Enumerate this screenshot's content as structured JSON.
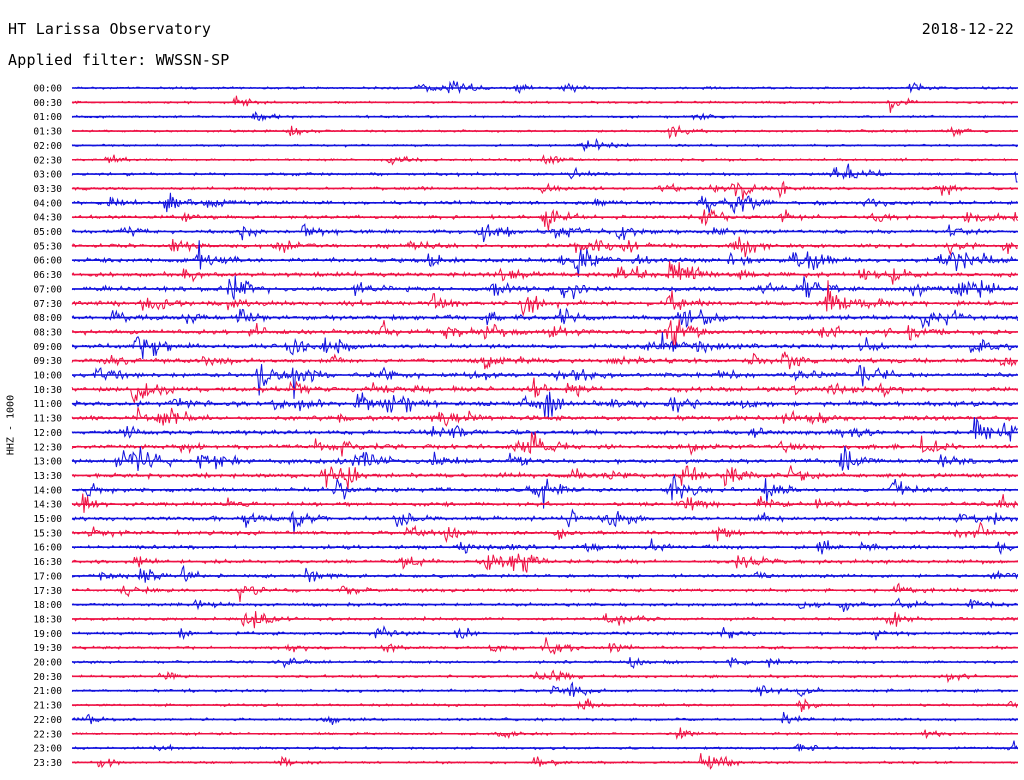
{
  "header": {
    "station": "HT Larissa Observatory",
    "date": "2018-12-22",
    "filter_label": "Applied filter: WWSSN-SP"
  },
  "chart_data": {
    "type": "line",
    "title": "HT Larissa Observatory",
    "subtitle": "Applied filter: WWSSN-SP",
    "ylabel": "HHZ - 1000",
    "xlabel": "",
    "grid": false,
    "colors": [
      "#1111dd",
      "#ee1144"
    ],
    "trace_labels": [
      "00:00",
      "00:30",
      "01:00",
      "01:30",
      "02:00",
      "02:30",
      "03:00",
      "03:30",
      "04:00",
      "04:30",
      "05:00",
      "05:30",
      "06:00",
      "06:30",
      "07:00",
      "07:30",
      "08:00",
      "08:30",
      "09:00",
      "09:30",
      "10:00",
      "10:30",
      "11:00",
      "11:30",
      "12:00",
      "12:30",
      "13:00",
      "13:30",
      "14:00",
      "14:30",
      "15:00",
      "15:30",
      "16:00",
      "16:30",
      "17:00",
      "17:30",
      "18:00",
      "18:30",
      "19:00",
      "19:30",
      "20:00",
      "20:30",
      "21:00",
      "21:30",
      "22:00",
      "22:30",
      "23:00",
      "23:30"
    ],
    "trace_minutes": 30,
    "relative_amplitude": [
      0.3,
      0.22,
      0.25,
      0.25,
      0.22,
      0.25,
      0.45,
      0.5,
      0.7,
      0.65,
      0.75,
      0.85,
      0.95,
      1.0,
      1.0,
      1.0,
      1.0,
      1.0,
      1.0,
      1.0,
      1.0,
      1.0,
      1.0,
      0.95,
      0.95,
      0.95,
      0.95,
      0.9,
      0.85,
      0.8,
      0.8,
      0.8,
      0.75,
      0.7,
      0.65,
      0.6,
      0.55,
      0.5,
      0.5,
      0.45,
      0.4,
      0.4,
      0.4,
      0.35,
      0.35,
      0.3,
      0.3,
      0.28
    ],
    "notable_events": [
      {
        "trace": "00:00",
        "minute": 12,
        "strength": 0.6
      },
      {
        "trace": "00:00",
        "minute": 11,
        "strength": 0.4
      },
      {
        "trace": "01:30",
        "minute": 19,
        "strength": 0.5
      },
      {
        "trace": "02:30",
        "minute": 15,
        "strength": 0.4
      },
      {
        "trace": "03:00",
        "minute": 30,
        "strength": 0.9
      },
      {
        "trace": "03:30",
        "minute": 21,
        "strength": 0.7
      },
      {
        "trace": "04:00",
        "minute": 3,
        "strength": 0.8
      },
      {
        "trace": "04:00",
        "minute": 21,
        "strength": 0.7
      },
      {
        "trace": "04:30",
        "minute": 15,
        "strength": 0.8
      },
      {
        "trace": "04:30",
        "minute": 20,
        "strength": 0.6
      },
      {
        "trace": "05:00",
        "minute": 13,
        "strength": 0.8
      },
      {
        "trace": "05:30",
        "minute": 21,
        "strength": 1.0
      },
      {
        "trace": "06:00",
        "minute": 4,
        "strength": 1.0
      },
      {
        "trace": "06:00",
        "minute": 16,
        "strength": 0.8
      },
      {
        "trace": "06:00",
        "minute": 28,
        "strength": 1.0
      },
      {
        "trace": "06:30",
        "minute": 19,
        "strength": 1.0
      },
      {
        "trace": "07:00",
        "minute": 5,
        "strength": 1.0
      },
      {
        "trace": "07:00",
        "minute": 28,
        "strength": 0.9
      },
      {
        "trace": "07:30",
        "minute": 24,
        "strength": 0.8
      },
      {
        "trace": "08:00",
        "minute": 30,
        "strength": 0.9
      },
      {
        "trace": "08:30",
        "minute": 19,
        "strength": 1.0
      },
      {
        "trace": "09:00",
        "minute": 8,
        "strength": 1.0
      },
      {
        "trace": "09:00",
        "minute": 2,
        "strength": 0.8
      },
      {
        "trace": "10:00",
        "minute": 7,
        "strength": 1.0
      },
      {
        "trace": "10:00",
        "minute": 25,
        "strength": 0.9
      },
      {
        "trace": "10:30",
        "minute": 2,
        "strength": 1.0
      },
      {
        "trace": "11:00",
        "minute": 9,
        "strength": 0.9
      },
      {
        "trace": "11:00",
        "minute": 15,
        "strength": 0.8
      },
      {
        "trace": "12:30",
        "minute": 27,
        "strength": 0.7
      },
      {
        "trace": "13:00",
        "minute": 2,
        "strength": 1.0
      },
      {
        "trace": "13:00",
        "minute": 9,
        "strength": 1.0
      },
      {
        "trace": "13:30",
        "minute": 8,
        "strength": 1.0
      },
      {
        "trace": "14:00",
        "minute": 22,
        "strength": 0.7
      },
      {
        "trace": "15:00",
        "minute": 7,
        "strength": 0.7
      },
      {
        "trace": "15:00",
        "minute": 17,
        "strength": 0.7
      },
      {
        "trace": "16:30",
        "minute": 14,
        "strength": 0.8
      },
      {
        "trace": "19:30",
        "minute": 15,
        "strength": 0.7
      },
      {
        "trace": "23:30",
        "minute": 20,
        "strength": 0.8
      }
    ]
  }
}
